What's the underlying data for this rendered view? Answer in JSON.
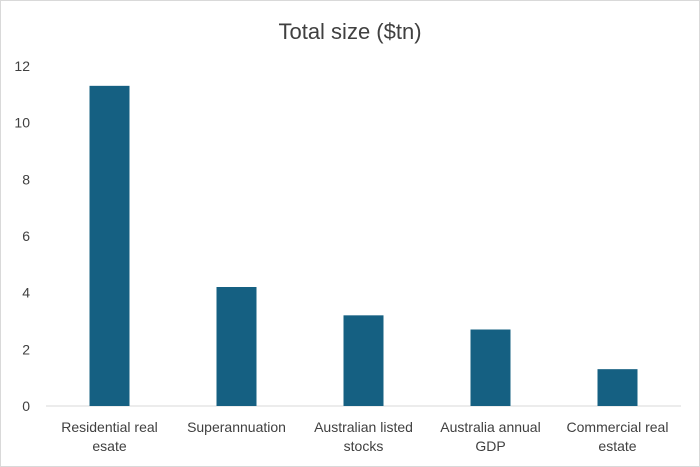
{
  "chart_data": {
    "type": "bar",
    "title": "Total size ($tn)",
    "categories": [
      [
        "Residential real",
        "esate"
      ],
      [
        "Superannuation"
      ],
      [
        "Australian listed",
        "stocks"
      ],
      [
        "Australia annual",
        "GDP"
      ],
      [
        "Commercial real",
        "estate"
      ]
    ],
    "values": [
      11.3,
      4.2,
      3.2,
      2.7,
      1.3
    ],
    "ylim": [
      0,
      12
    ],
    "yticks": [
      "0",
      "2",
      "4",
      "6",
      "8",
      "10",
      "12"
    ],
    "xlabel": "",
    "ylabel": "",
    "grid": false,
    "legend": "none",
    "bar_color": "#156082"
  }
}
